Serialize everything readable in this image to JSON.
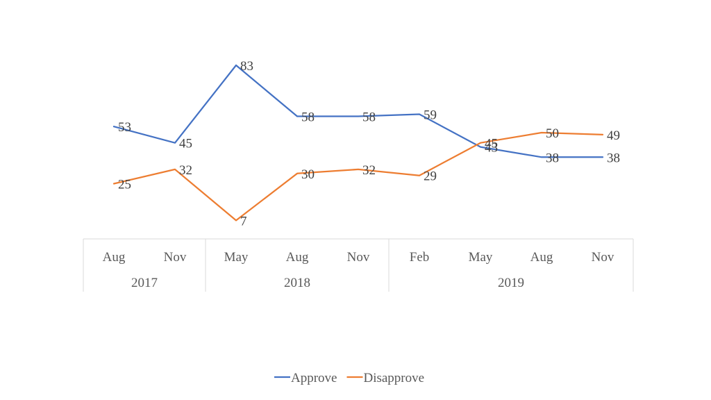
{
  "chart_data": {
    "type": "line",
    "title": "",
    "xlabel": "",
    "ylabel": "",
    "categories": [
      {
        "month": "Aug",
        "year": "2017"
      },
      {
        "month": "Nov",
        "year": "2017"
      },
      {
        "month": "May",
        "year": "2018"
      },
      {
        "month": "Aug",
        "year": "2018"
      },
      {
        "month": "Nov",
        "year": "2018"
      },
      {
        "month": "Feb",
        "year": "2019"
      },
      {
        "month": "May",
        "year": "2019"
      },
      {
        "month": "Aug",
        "year": "2019"
      },
      {
        "month": "Nov",
        "year": "2019"
      }
    ],
    "year_groups": [
      {
        "label": "2017",
        "count": 2
      },
      {
        "label": "2018",
        "count": 3
      },
      {
        "label": "2019",
        "count": 4
      }
    ],
    "series": [
      {
        "name": "Approve",
        "color": "#4472C4",
        "values": [
          53,
          45,
          83,
          58,
          58,
          59,
          43,
          38,
          38
        ]
      },
      {
        "name": "Disapprove",
        "color": "#ED7D31",
        "values": [
          25,
          32,
          7,
          30,
          32,
          29,
          45,
          50,
          49
        ]
      }
    ],
    "data_labels": true,
    "grid": false,
    "legend_position": "bottom"
  }
}
